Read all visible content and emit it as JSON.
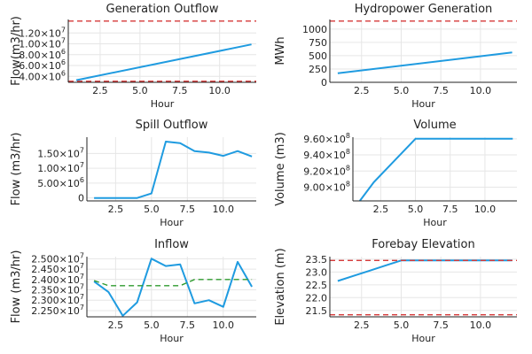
{
  "chart_data": [
    {
      "type": "line",
      "title": "Generation Outflow",
      "xlabel": "Hour",
      "ylabel": "Flow(m3/hr)",
      "xlim": [
        0.5,
        12.3
      ],
      "ylim": [
        2900000.0,
        14500000.0
      ],
      "xticks": [
        2.5,
        5.0,
        7.5,
        10.0
      ],
      "xtick_labels": [
        "2.5",
        "5.0",
        "7.5",
        "10.0"
      ],
      "yticks": [
        4000000.0,
        6000000.0,
        8000000.0,
        10000000.0,
        12000000.0
      ],
      "ytick_labels": [
        {
          "m": "4.00",
          "e": "6"
        },
        {
          "m": "6.00",
          "e": "6"
        },
        {
          "m": "8.00",
          "e": "6"
        },
        {
          "m": "1.00",
          "e": "7"
        },
        {
          "m": "1.20",
          "e": "7"
        }
      ],
      "series": [
        {
          "color": "#1f9be0",
          "dash": false,
          "x": [
            1,
            12
          ],
          "y": [
            3300000.0,
            9900000.0
          ]
        },
        {
          "color": "#d63a3a",
          "dash": true,
          "x": [
            0.5,
            12.3
          ],
          "y": [
            14200000.0,
            14200000.0
          ]
        },
        {
          "color": "#d63a3a",
          "dash": true,
          "x": [
            0.5,
            12.3
          ],
          "y": [
            3100000.0,
            3100000.0
          ]
        }
      ]
    },
    {
      "type": "line",
      "title": "Hydropower Generation",
      "xlabel": "Hour",
      "ylabel": "MWh",
      "xlim": [
        0.5,
        12.3
      ],
      "ylim": [
        0,
        1180
      ],
      "xticks": [
        2.5,
        5.0,
        7.5,
        10.0
      ],
      "xtick_labels": [
        "2.5",
        "5.0",
        "7.5",
        "10.0"
      ],
      "yticks": [
        0,
        250,
        500,
        750,
        1000
      ],
      "ytick_labels": [
        {
          "m": "0",
          "e": ""
        },
        {
          "m": "250",
          "e": ""
        },
        {
          "m": "500",
          "e": ""
        },
        {
          "m": "750",
          "e": ""
        },
        {
          "m": "1000",
          "e": ""
        }
      ],
      "series": [
        {
          "color": "#1f9be0",
          "dash": false,
          "x": [
            1,
            12
          ],
          "y": [
            170,
            560
          ]
        },
        {
          "color": "#d63a3a",
          "dash": true,
          "x": [
            0.5,
            12.3
          ],
          "y": [
            1150,
            1150
          ]
        }
      ]
    },
    {
      "type": "line",
      "title": "Spill Outflow",
      "xlabel": "Hour",
      "ylabel": "Flow (m3/hr)",
      "xlim": [
        0.5,
        12.3
      ],
      "ylim": [
        -1000000.0,
        20500000.0
      ],
      "xticks": [
        2.5,
        5.0,
        7.5,
        10.0
      ],
      "xtick_labels": [
        "2.5",
        "5.0",
        "7.5",
        "10.0"
      ],
      "yticks": [
        0,
        5000000.0,
        10000000.0,
        15000000.0
      ],
      "ytick_labels": [
        {
          "m": "0",
          "e": ""
        },
        {
          "m": "5.00",
          "e": "6"
        },
        {
          "m": "1.00",
          "e": "7"
        },
        {
          "m": "1.50",
          "e": "7"
        }
      ],
      "series": [
        {
          "color": "#1f9be0",
          "dash": false,
          "x": [
            1,
            2,
            3,
            4,
            5,
            6,
            7,
            8,
            9,
            10,
            11,
            12
          ],
          "y": [
            0,
            0,
            0,
            0,
            1500000.0,
            19000000.0,
            18500000.0,
            15800000.0,
            15300000.0,
            14200000.0,
            15800000.0,
            14000000.0
          ]
        }
      ]
    },
    {
      "type": "line",
      "title": "Volume",
      "xlabel": "Hour",
      "ylabel": "Volume (m3)",
      "xlim": [
        0.5,
        12.3
      ],
      "ylim": [
        883000000.0,
        962000000.0
      ],
      "xticks": [
        2.5,
        5.0,
        7.5,
        10.0
      ],
      "xtick_labels": [
        "2.5",
        "5.0",
        "7.5",
        "10.0"
      ],
      "yticks": [
        900000000.0,
        920000000.0,
        940000000.0,
        960000000.0
      ],
      "ytick_labels": [
        {
          "m": "9.00",
          "e": "8"
        },
        {
          "m": "9.20",
          "e": "8"
        },
        {
          "m": "9.40",
          "e": "8"
        },
        {
          "m": "9.60",
          "e": "8"
        }
      ],
      "series": [
        {
          "color": "#1f9be0",
          "dash": false,
          "x": [
            1,
            2,
            3,
            4,
            5,
            6,
            7,
            8,
            9,
            10,
            11,
            12
          ],
          "y": [
            883000000.0,
            906000000.0,
            924000000.0,
            942000000.0,
            960000000.0,
            960000000.0,
            960000000.0,
            960000000.0,
            960000000.0,
            960000000.0,
            960000000.0,
            960000000.0
          ]
        }
      ]
    },
    {
      "type": "line",
      "title": "Inflow",
      "xlabel": "Hour",
      "ylabel": "Flow (m3/hr)",
      "xlim": [
        0.5,
        12.3
      ],
      "ylim": [
        22200000.0,
        25100000.0
      ],
      "xticks": [
        2.5,
        5.0,
        7.5,
        10.0
      ],
      "xtick_labels": [
        "2.5",
        "5.0",
        "7.5",
        "10.0"
      ],
      "yticks": [
        22500000.0,
        23000000.0,
        23500000.0,
        24000000.0,
        24500000.0,
        25000000.0
      ],
      "ytick_labels": [
        {
          "m": "2.250",
          "e": "7"
        },
        {
          "m": "2.300",
          "e": "7"
        },
        {
          "m": "2.350",
          "e": "7"
        },
        {
          "m": "2.400",
          "e": "7"
        },
        {
          "m": "2.450",
          "e": "7"
        },
        {
          "m": "2.500",
          "e": "7"
        }
      ],
      "series": [
        {
          "color": "#1f9be0",
          "dash": false,
          "x": [
            1,
            2,
            3,
            4,
            5,
            6,
            7,
            8,
            9,
            10,
            11,
            12
          ],
          "y": [
            23900000.0,
            23400000.0,
            22250000.0,
            22900000.0,
            25000000.0,
            24650000.0,
            24730000.0,
            22850000.0,
            23000000.0,
            22680000.0,
            24850000.0,
            23650000.0
          ]
        },
        {
          "color": "#2e9a2e",
          "dash": true,
          "x": [
            1,
            2,
            3,
            4,
            5,
            6,
            7,
            8,
            9,
            10,
            11,
            12
          ],
          "y": [
            23950000.0,
            23700000.0,
            23700000.0,
            23700000.0,
            23700000.0,
            23700000.0,
            23700000.0,
            24000000.0,
            24000000.0,
            24000000.0,
            24000000.0,
            24000000.0
          ]
        }
      ]
    },
    {
      "type": "line",
      "title": "Forebay Elevation",
      "xlabel": "Hour",
      "ylabel": "Elevation (m)",
      "xlim": [
        0.5,
        12.3
      ],
      "ylim": [
        21.25,
        23.6
      ],
      "xticks": [
        2.5,
        5.0,
        7.5,
        10.0
      ],
      "xtick_labels": [
        "2.5",
        "5.0",
        "7.5",
        "10.0"
      ],
      "yticks": [
        21.5,
        22.0,
        22.5,
        23.0,
        23.5
      ],
      "ytick_labels": [
        {
          "m": "21.5",
          "e": ""
        },
        {
          "m": "22.0",
          "e": ""
        },
        {
          "m": "22.5",
          "e": ""
        },
        {
          "m": "23.0",
          "e": ""
        },
        {
          "m": "23.5",
          "e": ""
        }
      ],
      "series": [
        {
          "color": "#1f9be0",
          "dash": false,
          "x": [
            1,
            2,
            3,
            4,
            5,
            6,
            7,
            8,
            9,
            10,
            11,
            12
          ],
          "y": [
            22.65,
            22.85,
            23.05,
            23.25,
            23.45,
            23.45,
            23.45,
            23.45,
            23.45,
            23.45,
            23.45,
            23.45
          ]
        },
        {
          "color": "#d63a3a",
          "dash": true,
          "x": [
            0.5,
            12.3
          ],
          "y": [
            23.45,
            23.45
          ]
        },
        {
          "color": "#d63a3a",
          "dash": true,
          "x": [
            0.5,
            12.3
          ],
          "y": [
            21.33,
            21.33
          ]
        }
      ]
    }
  ]
}
